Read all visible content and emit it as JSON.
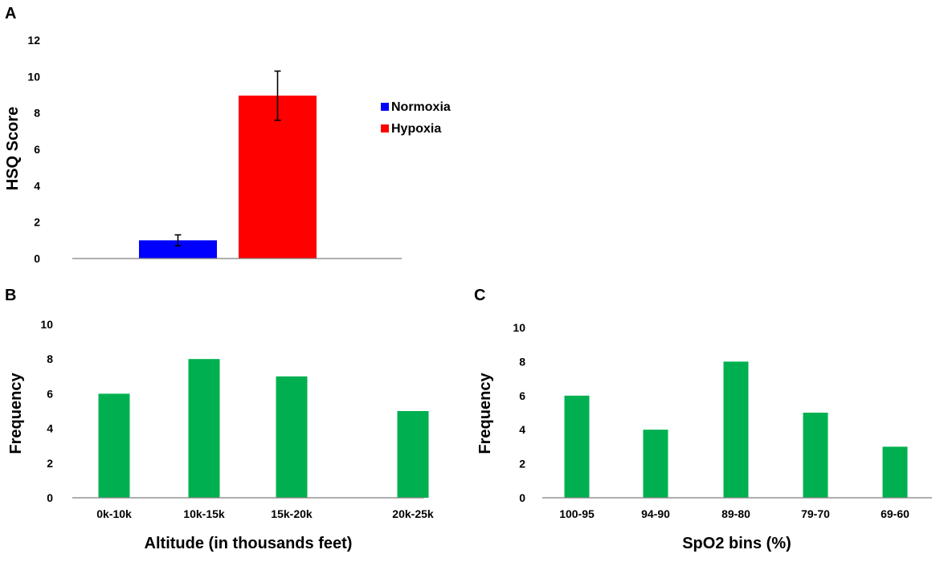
{
  "chart_data": [
    {
      "type": "bar",
      "panel": "A",
      "title": "",
      "xlabel": "",
      "ylabel": "HSQ Score",
      "ylim": [
        0,
        12
      ],
      "yticks": [
        0,
        2,
        4,
        6,
        8,
        10,
        12
      ],
      "grid": false,
      "legend_position": "right",
      "series": [
        {
          "name": "Normoxia",
          "value": 1.0,
          "error": 0.3,
          "color": "#0000ff"
        },
        {
          "name": "Hypoxia",
          "value": 8.95,
          "error": 1.35,
          "color": "#ff0000"
        }
      ]
    },
    {
      "type": "bar",
      "panel": "B",
      "title": "",
      "xlabel": "Altitude (in thousands feet)",
      "ylabel": "Frequency",
      "ylim": [
        0,
        10
      ],
      "yticks": [
        0,
        2,
        4,
        6,
        8,
        10
      ],
      "grid": false,
      "color": "#00b050",
      "categories": [
        "0k-10k",
        "10k-15k",
        "15k-20k",
        "20k-25k"
      ],
      "values": [
        6,
        8,
        7,
        5
      ]
    },
    {
      "type": "bar",
      "panel": "C",
      "title": "",
      "xlabel": "SpO2 bins (%)",
      "ylabel": "Frequency",
      "ylim": [
        0,
        10
      ],
      "yticks": [
        0,
        2,
        4,
        6,
        8,
        10
      ],
      "grid": false,
      "color": "#00b050",
      "categories": [
        "100-95",
        "94-90",
        "89-80",
        "79-70",
        "69-60"
      ],
      "values": [
        6,
        4,
        8,
        5,
        3
      ]
    }
  ]
}
